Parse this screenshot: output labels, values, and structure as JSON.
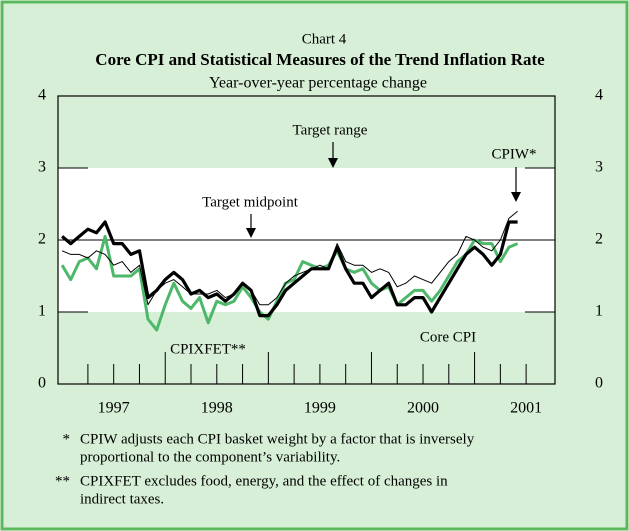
{
  "chart_data": {
    "type": "line",
    "label": "Chart 4",
    "title": "Core CPI and Statistical Measures of the Trend Inflation Rate",
    "subtitle": "Year-over-year percentage change",
    "x": [
      1997,
      1997.083,
      1997.167,
      1997.25,
      1997.333,
      1997.417,
      1997.5,
      1997.583,
      1997.667,
      1997.75,
      1997.833,
      1997.917,
      1998,
      1998.083,
      1998.167,
      1998.25,
      1998.333,
      1998.417,
      1998.5,
      1998.583,
      1998.667,
      1998.75,
      1998.833,
      1998.917,
      1999,
      1999.083,
      1999.167,
      1999.25,
      1999.333,
      1999.417,
      1999.5,
      1999.583,
      1999.667,
      1999.75,
      1999.833,
      1999.917,
      2000,
      2000.083,
      2000.167,
      2000.25,
      2000.333,
      2000.417,
      2000.5,
      2000.583,
      2000.667,
      2000.75,
      2000.833,
      2000.917,
      2001,
      2001.083,
      2001.167,
      2001.25,
      2001.333,
      2001.417
    ],
    "series": [
      {
        "name": "CPIXFET**",
        "color": "#4db86a",
        "width": 3,
        "values": [
          1.65,
          1.45,
          1.7,
          1.75,
          1.6,
          2.05,
          1.5,
          1.5,
          1.5,
          1.6,
          0.9,
          0.75,
          1.1,
          1.4,
          1.15,
          1.05,
          1.2,
          0.85,
          1.15,
          1.1,
          1.15,
          1.35,
          1.2,
          1.0,
          0.9,
          1.15,
          1.4,
          1.45,
          1.7,
          1.65,
          1.6,
          1.65,
          1.85,
          1.6,
          1.55,
          1.6,
          1.4,
          1.3,
          1.35,
          1.1,
          1.2,
          1.3,
          1.3,
          1.15,
          1.3,
          1.5,
          1.7,
          1.8,
          2.0,
          1.95,
          1.95,
          1.7,
          1.9,
          1.95
        ]
      },
      {
        "name": "CPIW*",
        "color": "#000000",
        "width": 1,
        "values": [
          1.85,
          1.8,
          1.8,
          1.75,
          1.85,
          1.8,
          1.65,
          1.7,
          1.55,
          1.65,
          1.1,
          1.3,
          1.4,
          1.45,
          1.35,
          1.25,
          1.25,
          1.25,
          1.3,
          1.2,
          1.25,
          1.4,
          1.3,
          1.1,
          1.1,
          1.2,
          1.4,
          1.5,
          1.55,
          1.6,
          1.65,
          1.6,
          1.95,
          1.7,
          1.65,
          1.65,
          1.55,
          1.6,
          1.55,
          1.35,
          1.4,
          1.5,
          1.45,
          1.4,
          1.55,
          1.7,
          1.8,
          2.05,
          2.0,
          1.9,
          1.85,
          2.0,
          2.3,
          2.4
        ]
      },
      {
        "name": "Core CPI",
        "color": "#000000",
        "width": 3.2,
        "values": [
          2.05,
          1.95,
          2.05,
          2.15,
          2.1,
          2.25,
          1.95,
          1.95,
          1.8,
          1.85,
          1.2,
          1.3,
          1.45,
          1.55,
          1.45,
          1.25,
          1.3,
          1.2,
          1.25,
          1.15,
          1.25,
          1.4,
          1.3,
          0.95,
          0.95,
          1.1,
          1.3,
          1.4,
          1.5,
          1.6,
          1.6,
          1.6,
          1.9,
          1.6,
          1.4,
          1.4,
          1.2,
          1.3,
          1.4,
          1.1,
          1.1,
          1.2,
          1.2,
          1.0,
          1.2,
          1.4,
          1.6,
          1.8,
          1.9,
          1.8,
          1.65,
          1.8,
          2.25,
          2.25
        ]
      }
    ],
    "xlim": [
      1996.96,
      2001.78
    ],
    "xticks": [
      1997.25,
      1997.5,
      1997.75,
      1998,
      1998.25,
      1998.5,
      1998.75,
      1999,
      1999.25,
      1999.5,
      1999.75,
      2000,
      2000.25,
      2000.5,
      2000.75,
      2001,
      2001.25,
      2001.5
    ],
    "xtick_labels": [
      {
        "value": 1997.5,
        "label": "1997"
      },
      {
        "value": 1998.5,
        "label": "1998"
      },
      {
        "value": 1999.5,
        "label": "1999"
      },
      {
        "value": 2000.5,
        "label": "2000"
      },
      {
        "value": 2001.5,
        "label": "2001"
      }
    ],
    "ylim": [
      0,
      4
    ],
    "yticks": [
      0,
      1,
      2,
      3,
      4
    ],
    "target_range": [
      1,
      3
    ],
    "target_midpoint": 2,
    "annotations": [
      "Target range",
      "Target midpoint"
    ],
    "notes": [
      {
        "marker": "*",
        "lines": [
          "CPIW adjusts each CPI basket weight by a factor that is inversely",
          "proportional to the component’s variability."
        ]
      },
      {
        "marker": "**",
        "lines": [
          "CPIXFET excludes food, energy, and the effect of changes in",
          "indirect taxes."
        ]
      }
    ]
  }
}
